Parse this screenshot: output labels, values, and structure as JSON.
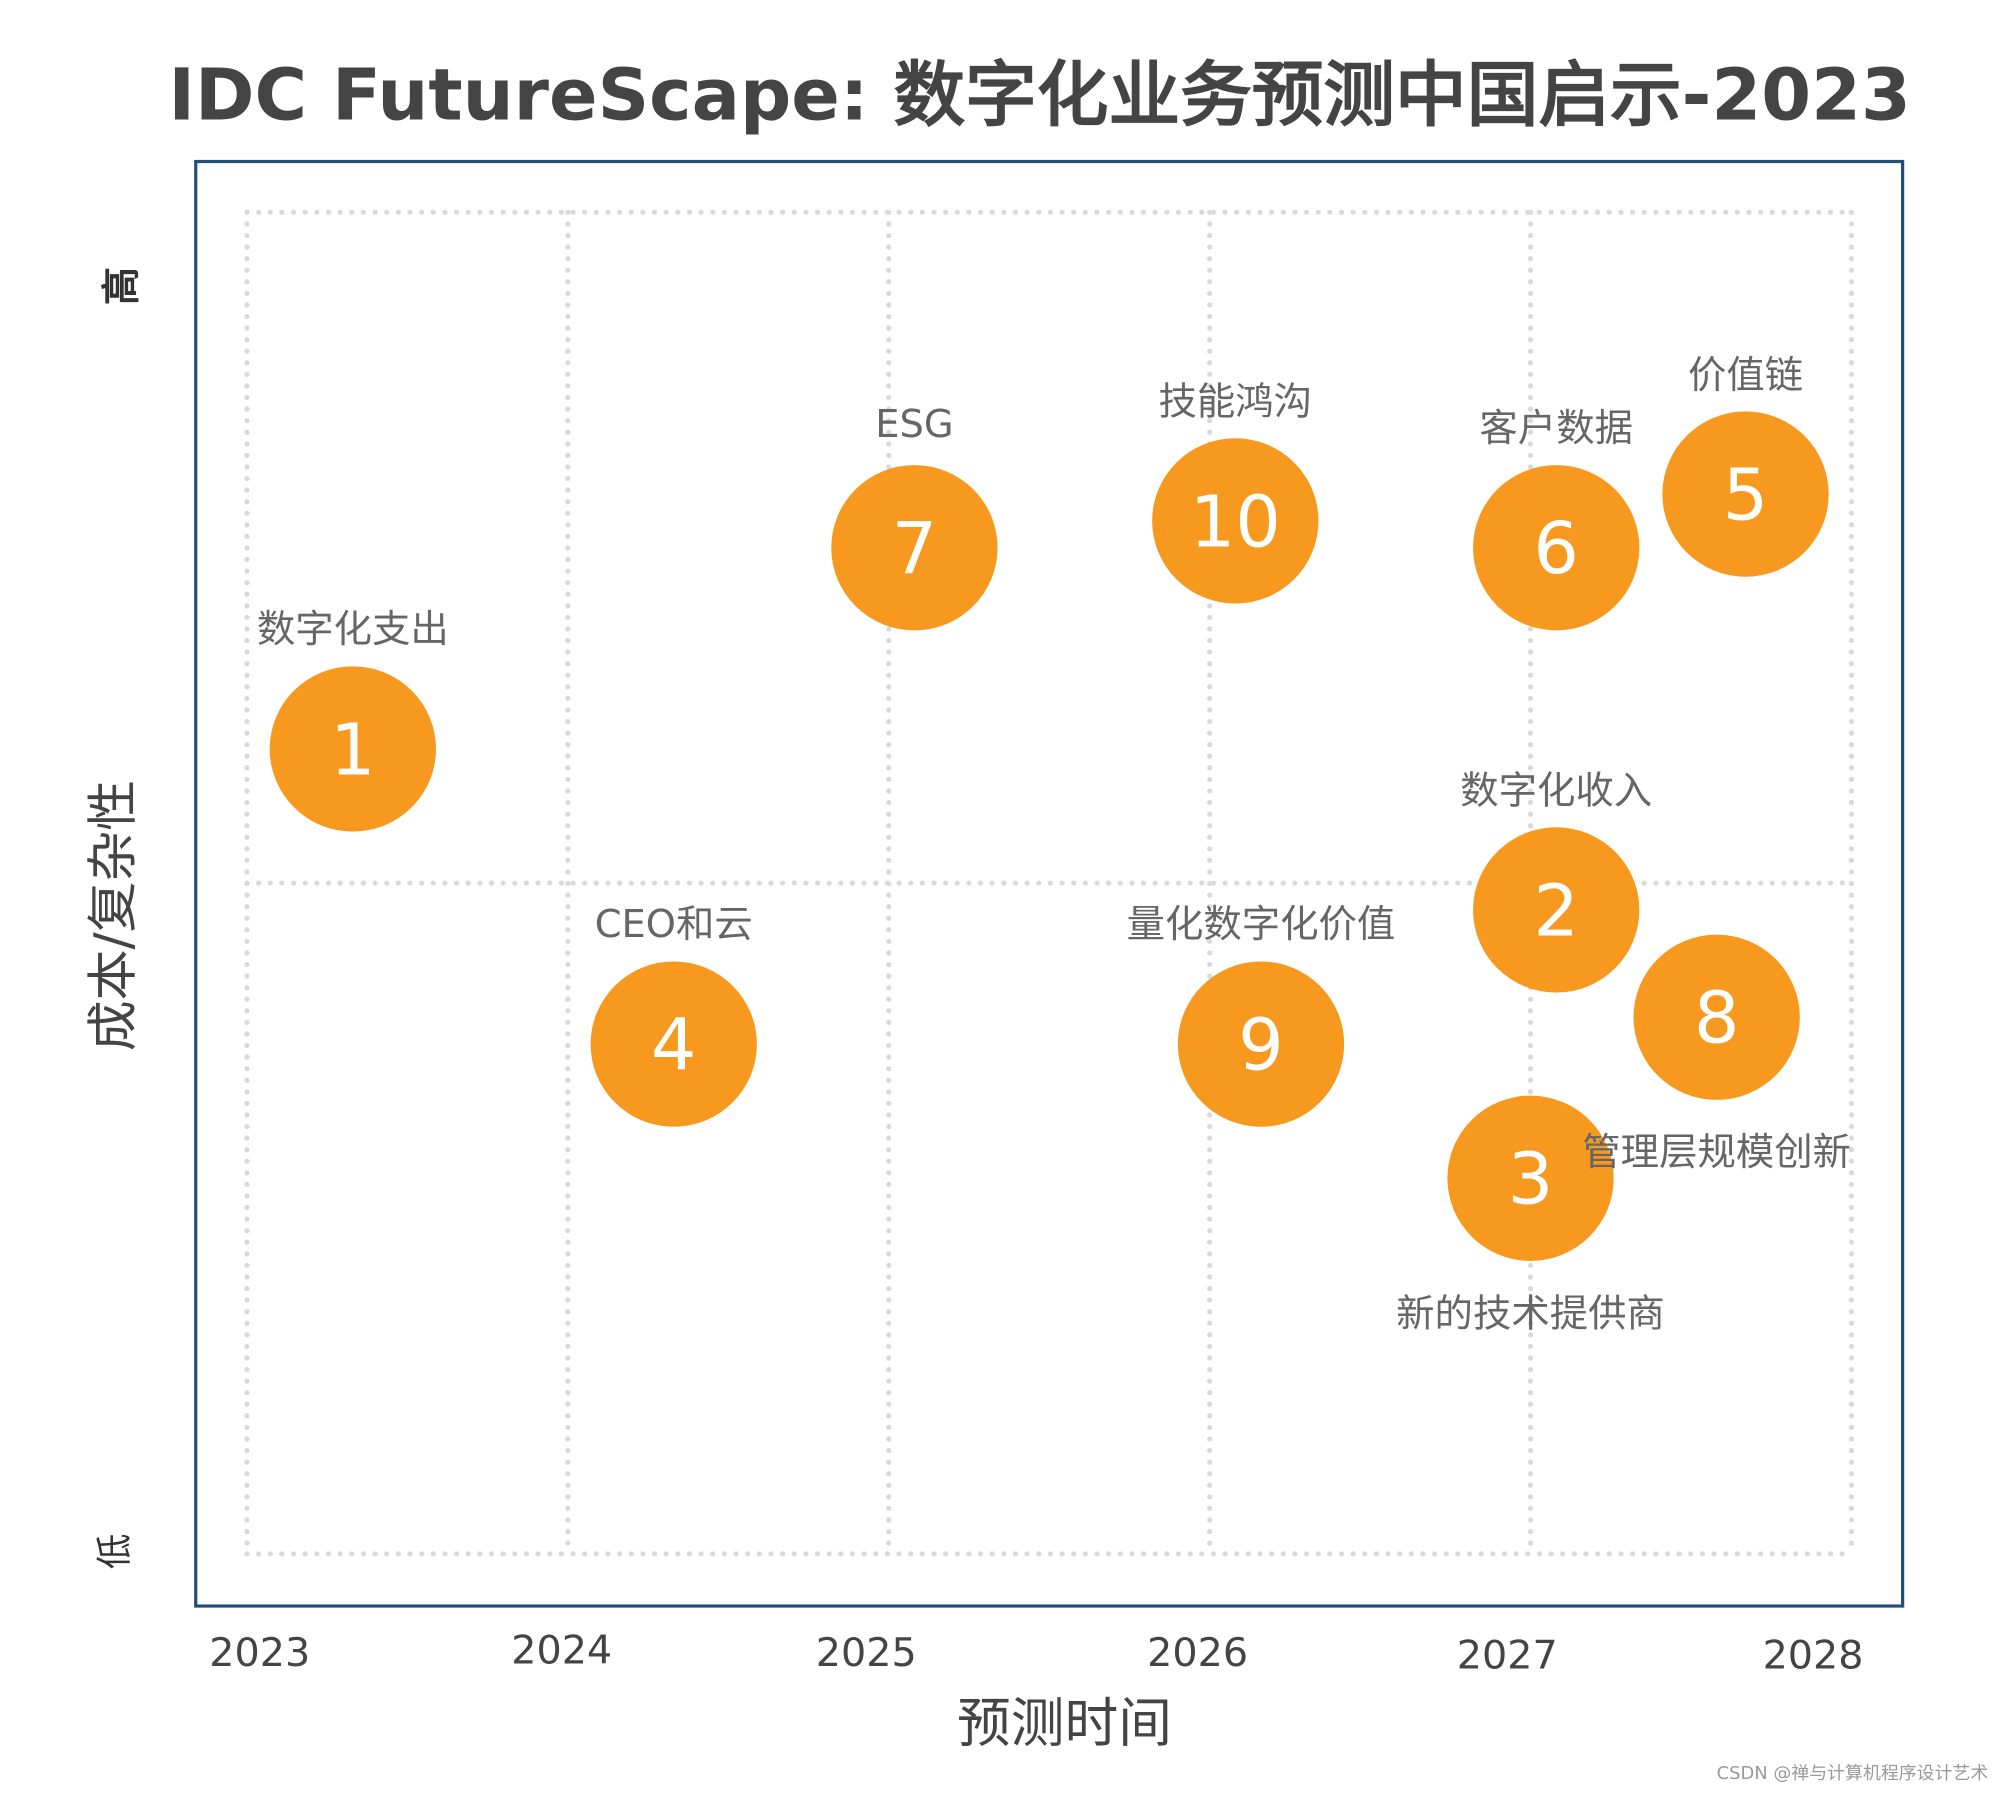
{
  "chart_data": {
    "type": "scatter",
    "title": "IDC FutureScape: 数字化业务预测中国启示-2023",
    "xlabel": "预测时间",
    "ylabel": "成本/复杂性",
    "xlim": [
      2023,
      2028
    ],
    "x_ticks": [
      "2023",
      "2024",
      "2025",
      "2026",
      "2027",
      "2028"
    ],
    "ylim": [
      0,
      1
    ],
    "y_ticks": {
      "low": "低",
      "high": "高"
    },
    "grid": true,
    "marker_color": "#F7991F",
    "frame_color": "#1F4E79",
    "points": [
      {
        "id": "1",
        "label": "数字化支出",
        "x": 2023.33,
        "y": 0.6,
        "label_position": "above"
      },
      {
        "id": "2",
        "label": "数字化收入",
        "x": 2027.08,
        "y": 0.48,
        "label_position": "above"
      },
      {
        "id": "3",
        "label": "新的技术提供商",
        "x": 2027.0,
        "y": 0.28,
        "label_position": "below"
      },
      {
        "id": "4",
        "label": "CEO和云",
        "x": 2024.33,
        "y": 0.38,
        "label_position": "above"
      },
      {
        "id": "5",
        "label": "价值链",
        "x": 2027.67,
        "y": 0.79,
        "label_position": "above"
      },
      {
        "id": "6",
        "label": "客户数据",
        "x": 2027.08,
        "y": 0.75,
        "label_position": "above"
      },
      {
        "id": "7",
        "label": "ESG",
        "x": 2025.08,
        "y": 0.75,
        "label_position": "above"
      },
      {
        "id": "8",
        "label": "管理层规模创新",
        "x": 2027.58,
        "y": 0.4,
        "label_position": "below"
      },
      {
        "id": "9",
        "label": "量化数字化价值",
        "x": 2026.16,
        "y": 0.38,
        "label_position": "above"
      },
      {
        "id": "10",
        "label": "技能鸿沟",
        "x": 2026.08,
        "y": 0.77,
        "label_position": "above"
      }
    ]
  },
  "watermark": "CSDN @禅与计算机程序设计艺术"
}
